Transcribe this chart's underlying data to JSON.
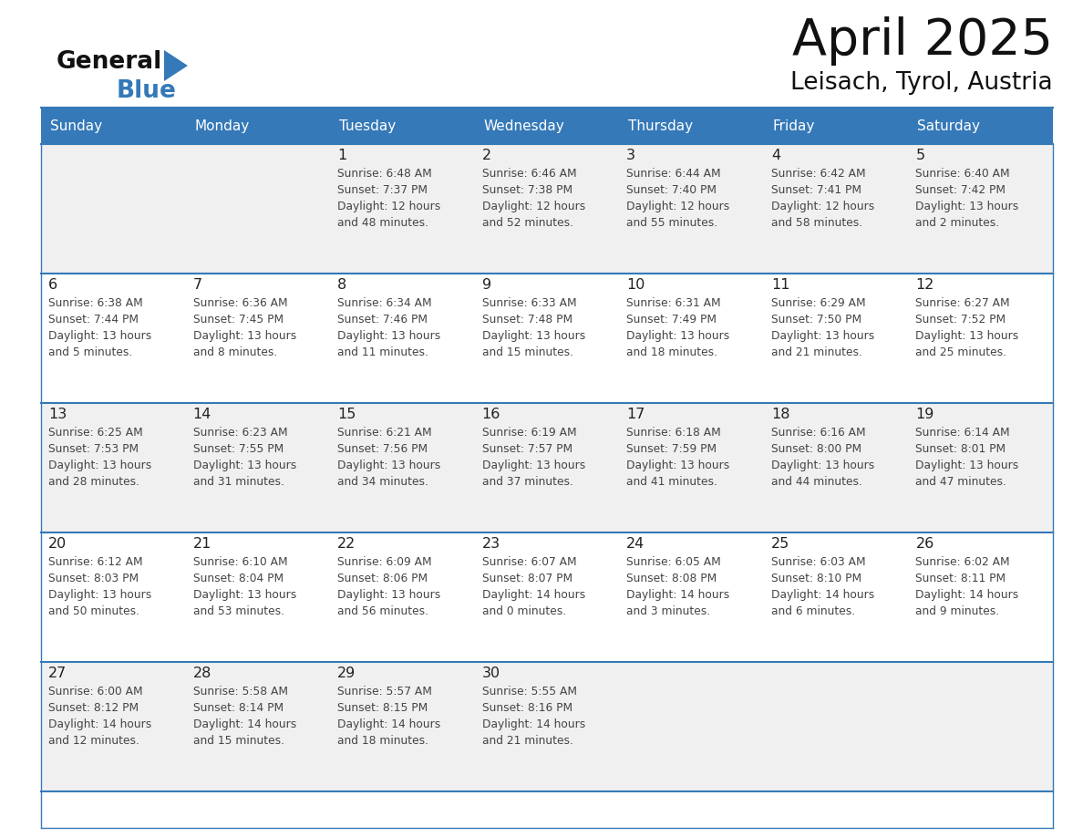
{
  "title": "April 2025",
  "subtitle": "Leisach, Tyrol, Austria",
  "header_bg_color": "#3579b8",
  "header_text_color": "#ffffff",
  "cell_bg_odd": "#f0f0f0",
  "cell_bg_even": "#ffffff",
  "text_color": "#222222",
  "info_text_color": "#444444",
  "border_color": "#3579b8",
  "days_of_week": [
    "Sunday",
    "Monday",
    "Tuesday",
    "Wednesday",
    "Thursday",
    "Friday",
    "Saturday"
  ],
  "weeks": [
    [
      {
        "day": "",
        "lines": []
      },
      {
        "day": "",
        "lines": []
      },
      {
        "day": "1",
        "lines": [
          "Sunrise: 6:48 AM",
          "Sunset: 7:37 PM",
          "Daylight: 12 hours",
          "and 48 minutes."
        ]
      },
      {
        "day": "2",
        "lines": [
          "Sunrise: 6:46 AM",
          "Sunset: 7:38 PM",
          "Daylight: 12 hours",
          "and 52 minutes."
        ]
      },
      {
        "day": "3",
        "lines": [
          "Sunrise: 6:44 AM",
          "Sunset: 7:40 PM",
          "Daylight: 12 hours",
          "and 55 minutes."
        ]
      },
      {
        "day": "4",
        "lines": [
          "Sunrise: 6:42 AM",
          "Sunset: 7:41 PM",
          "Daylight: 12 hours",
          "and 58 minutes."
        ]
      },
      {
        "day": "5",
        "lines": [
          "Sunrise: 6:40 AM",
          "Sunset: 7:42 PM",
          "Daylight: 13 hours",
          "and 2 minutes."
        ]
      }
    ],
    [
      {
        "day": "6",
        "lines": [
          "Sunrise: 6:38 AM",
          "Sunset: 7:44 PM",
          "Daylight: 13 hours",
          "and 5 minutes."
        ]
      },
      {
        "day": "7",
        "lines": [
          "Sunrise: 6:36 AM",
          "Sunset: 7:45 PM",
          "Daylight: 13 hours",
          "and 8 minutes."
        ]
      },
      {
        "day": "8",
        "lines": [
          "Sunrise: 6:34 AM",
          "Sunset: 7:46 PM",
          "Daylight: 13 hours",
          "and 11 minutes."
        ]
      },
      {
        "day": "9",
        "lines": [
          "Sunrise: 6:33 AM",
          "Sunset: 7:48 PM",
          "Daylight: 13 hours",
          "and 15 minutes."
        ]
      },
      {
        "day": "10",
        "lines": [
          "Sunrise: 6:31 AM",
          "Sunset: 7:49 PM",
          "Daylight: 13 hours",
          "and 18 minutes."
        ]
      },
      {
        "day": "11",
        "lines": [
          "Sunrise: 6:29 AM",
          "Sunset: 7:50 PM",
          "Daylight: 13 hours",
          "and 21 minutes."
        ]
      },
      {
        "day": "12",
        "lines": [
          "Sunrise: 6:27 AM",
          "Sunset: 7:52 PM",
          "Daylight: 13 hours",
          "and 25 minutes."
        ]
      }
    ],
    [
      {
        "day": "13",
        "lines": [
          "Sunrise: 6:25 AM",
          "Sunset: 7:53 PM",
          "Daylight: 13 hours",
          "and 28 minutes."
        ]
      },
      {
        "day": "14",
        "lines": [
          "Sunrise: 6:23 AM",
          "Sunset: 7:55 PM",
          "Daylight: 13 hours",
          "and 31 minutes."
        ]
      },
      {
        "day": "15",
        "lines": [
          "Sunrise: 6:21 AM",
          "Sunset: 7:56 PM",
          "Daylight: 13 hours",
          "and 34 minutes."
        ]
      },
      {
        "day": "16",
        "lines": [
          "Sunrise: 6:19 AM",
          "Sunset: 7:57 PM",
          "Daylight: 13 hours",
          "and 37 minutes."
        ]
      },
      {
        "day": "17",
        "lines": [
          "Sunrise: 6:18 AM",
          "Sunset: 7:59 PM",
          "Daylight: 13 hours",
          "and 41 minutes."
        ]
      },
      {
        "day": "18",
        "lines": [
          "Sunrise: 6:16 AM",
          "Sunset: 8:00 PM",
          "Daylight: 13 hours",
          "and 44 minutes."
        ]
      },
      {
        "day": "19",
        "lines": [
          "Sunrise: 6:14 AM",
          "Sunset: 8:01 PM",
          "Daylight: 13 hours",
          "and 47 minutes."
        ]
      }
    ],
    [
      {
        "day": "20",
        "lines": [
          "Sunrise: 6:12 AM",
          "Sunset: 8:03 PM",
          "Daylight: 13 hours",
          "and 50 minutes."
        ]
      },
      {
        "day": "21",
        "lines": [
          "Sunrise: 6:10 AM",
          "Sunset: 8:04 PM",
          "Daylight: 13 hours",
          "and 53 minutes."
        ]
      },
      {
        "day": "22",
        "lines": [
          "Sunrise: 6:09 AM",
          "Sunset: 8:06 PM",
          "Daylight: 13 hours",
          "and 56 minutes."
        ]
      },
      {
        "day": "23",
        "lines": [
          "Sunrise: 6:07 AM",
          "Sunset: 8:07 PM",
          "Daylight: 14 hours",
          "and 0 minutes."
        ]
      },
      {
        "day": "24",
        "lines": [
          "Sunrise: 6:05 AM",
          "Sunset: 8:08 PM",
          "Daylight: 14 hours",
          "and 3 minutes."
        ]
      },
      {
        "day": "25",
        "lines": [
          "Sunrise: 6:03 AM",
          "Sunset: 8:10 PM",
          "Daylight: 14 hours",
          "and 6 minutes."
        ]
      },
      {
        "day": "26",
        "lines": [
          "Sunrise: 6:02 AM",
          "Sunset: 8:11 PM",
          "Daylight: 14 hours",
          "and 9 minutes."
        ]
      }
    ],
    [
      {
        "day": "27",
        "lines": [
          "Sunrise: 6:00 AM",
          "Sunset: 8:12 PM",
          "Daylight: 14 hours",
          "and 12 minutes."
        ]
      },
      {
        "day": "28",
        "lines": [
          "Sunrise: 5:58 AM",
          "Sunset: 8:14 PM",
          "Daylight: 14 hours",
          "and 15 minutes."
        ]
      },
      {
        "day": "29",
        "lines": [
          "Sunrise: 5:57 AM",
          "Sunset: 8:15 PM",
          "Daylight: 14 hours",
          "and 18 minutes."
        ]
      },
      {
        "day": "30",
        "lines": [
          "Sunrise: 5:55 AM",
          "Sunset: 8:16 PM",
          "Daylight: 14 hours",
          "and 21 minutes."
        ]
      },
      {
        "day": "",
        "lines": []
      },
      {
        "day": "",
        "lines": []
      },
      {
        "day": "",
        "lines": []
      }
    ]
  ]
}
